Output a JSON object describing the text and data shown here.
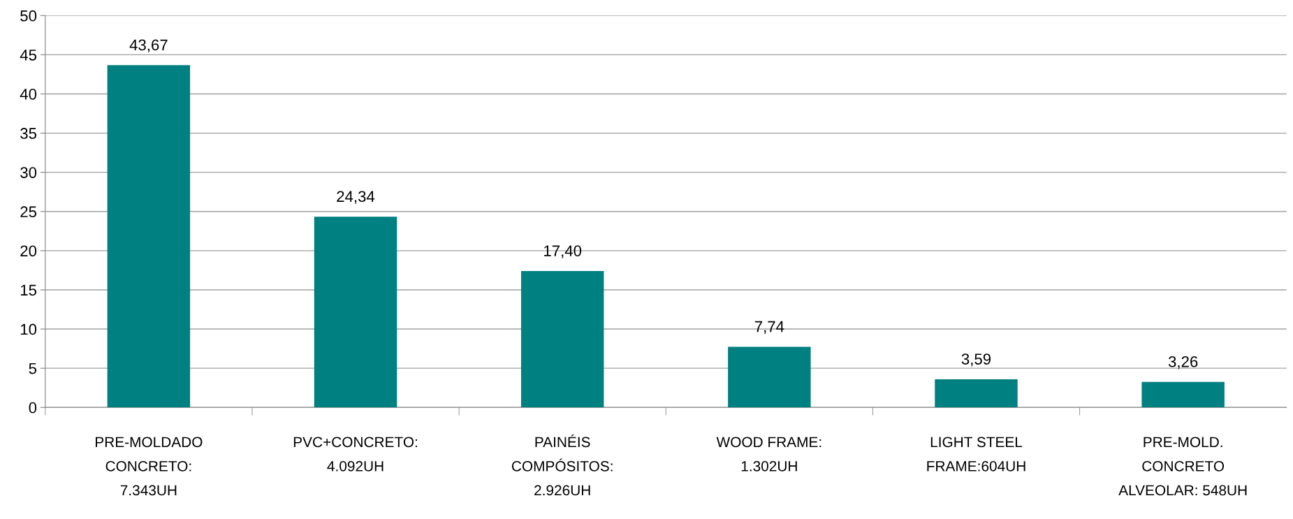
{
  "chart_data": {
    "type": "bar",
    "categories": [
      "PRE-MOLDADO\nCONCRETO:\n7.343UH",
      "PVC+CONCRETO:\n4.092UH",
      "PAINÉIS\nCOMPÓSITOS:\n2.926UH",
      "WOOD FRAME:\n1.302UH",
      "LIGHT STEEL\nFRAME:604UH",
      "PRE-MOLD.\nCONCRETO\nALVEOLAR: 548UH"
    ],
    "values": [
      43.67,
      24.34,
      17.4,
      7.74,
      3.59,
      3.26
    ],
    "value_labels": [
      "43,67",
      "24,34",
      "17,40",
      "7,74",
      "3,59",
      "3,26"
    ],
    "color": "#008080",
    "ylim": [
      0,
      50
    ],
    "yticks": [
      0,
      5,
      10,
      15,
      20,
      25,
      30,
      35,
      40,
      45,
      50
    ],
    "grid": "y",
    "legend": false
  }
}
